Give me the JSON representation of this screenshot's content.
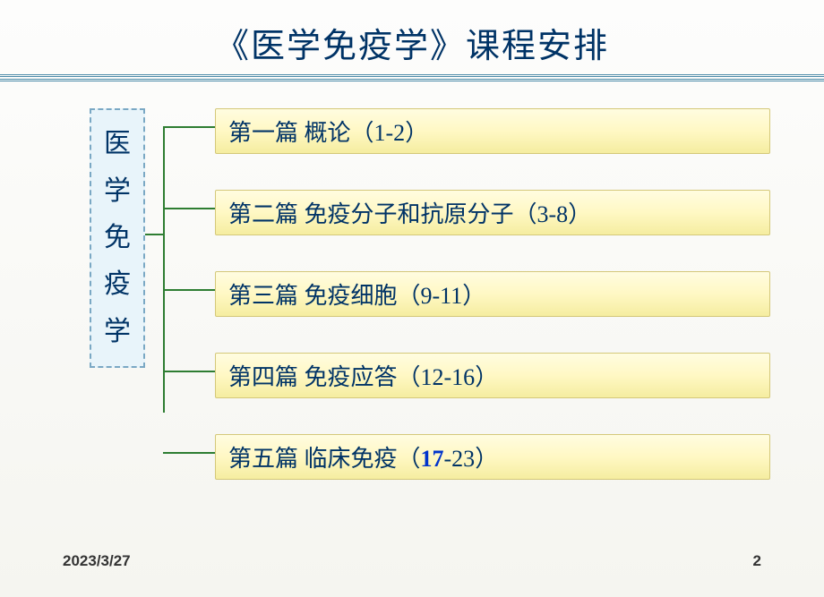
{
  "title": "《医学免疫学》课程安排",
  "sidebar": {
    "chars": [
      "医",
      "学",
      "免",
      "疫",
      "学"
    ],
    "background_color": "#e8f4fa",
    "border_color": "#7aa8c4",
    "text_color": "#003366",
    "font_size": 30
  },
  "chapters": [
    {
      "prefix": "第一篇 概论（",
      "range": "1-2",
      "suffix": "）",
      "highlight": ""
    },
    {
      "prefix": "第二篇 免疫分子和抗原分子（",
      "range": "3-8",
      "suffix": "）",
      "highlight": ""
    },
    {
      "prefix": "第三篇 免疫细胞（",
      "range": "9-11",
      "suffix": "）",
      "highlight": ""
    },
    {
      "prefix": "第四篇 免疫应答（",
      "range": "12-16",
      "suffix": "）",
      "highlight": ""
    },
    {
      "prefix": "第五篇 临床免疫（",
      "range": "-23",
      "suffix": "）",
      "highlight": "17"
    }
  ],
  "styling": {
    "title_color": "#003366",
    "title_fontsize": 38,
    "divider_color": "#4a8aa8",
    "chapter_bg_gradient": [
      "#fffce0",
      "#fff8c4",
      "#f5eda0"
    ],
    "chapter_border": "#d4c87a",
    "chapter_text_color": "#003366",
    "chapter_fontsize": 26,
    "connector_color": "#2e7d32",
    "highlight_color": "#0033cc",
    "page_bg": [
      "#fdfdfc",
      "#f5f5f0"
    ]
  },
  "footer": {
    "date": "2023/3/27",
    "page": "2"
  }
}
